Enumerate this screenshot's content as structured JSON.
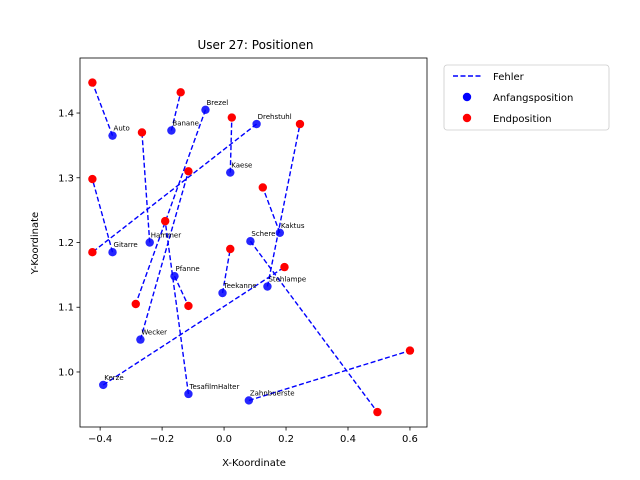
{
  "chart_data": {
    "type": "scatter",
    "title": "User 27: Positionen",
    "xlabel": "X-Koordinate",
    "ylabel": "Y-Koordinate",
    "xlim": [
      -0.465,
      0.655
    ],
    "ylim": [
      0.915,
      1.485
    ],
    "xticks": [
      -0.4,
      -0.2,
      0.0,
      0.2,
      0.4,
      0.6
    ],
    "xtick_labels": [
      "−0.4",
      "−0.2",
      "0.0",
      "0.2",
      "0.4",
      "0.6"
    ],
    "yticks": [
      1.0,
      1.1,
      1.2,
      1.3,
      1.4
    ],
    "ytick_labels": [
      "1.0",
      "1.1",
      "1.2",
      "1.3",
      "1.4"
    ],
    "legend": {
      "placement": "outside-top-right",
      "entries": [
        "Fehler",
        "Anfangsposition",
        "Endposition"
      ]
    },
    "colors": {
      "error_line": "#0000ff",
      "start": "#0000ff",
      "end": "#ff0000"
    },
    "items": [
      {
        "name": "Auto",
        "start": [
          -0.36,
          1.365
        ],
        "end": [
          -0.425,
          1.447
        ]
      },
      {
        "name": "Banane",
        "start": [
          -0.17,
          1.373
        ],
        "end": [
          -0.14,
          1.432
        ]
      },
      {
        "name": "Brezel",
        "start": [
          -0.06,
          1.405
        ],
        "end": [
          -0.285,
          1.105
        ]
      },
      {
        "name": "Drehstuhl",
        "start": [
          0.105,
          1.383
        ],
        "end": [
          -0.425,
          1.185
        ]
      },
      {
        "name": "Kaese",
        "start": [
          0.02,
          1.308
        ],
        "end": [
          0.025,
          1.393
        ]
      },
      {
        "name": "Kaktus",
        "start": [
          0.18,
          1.215
        ],
        "end": [
          0.125,
          1.285
        ]
      },
      {
        "name": "Gitarre",
        "start": [
          -0.36,
          1.185
        ],
        "end": [
          -0.425,
          1.298
        ]
      },
      {
        "name": "Hammer",
        "start": [
          -0.24,
          1.2
        ],
        "end": [
          -0.265,
          1.37
        ]
      },
      {
        "name": "Schere",
        "start": [
          0.085,
          1.202
        ],
        "end": [
          0.495,
          0.938
        ]
      },
      {
        "name": "Pfanne",
        "start": [
          -0.16,
          1.148
        ],
        "end": [
          -0.115,
          1.102
        ]
      },
      {
        "name": "Stehlampe",
        "start": [
          0.14,
          1.132
        ],
        "end": [
          0.245,
          1.383
        ]
      },
      {
        "name": "Teekanne",
        "start": [
          -0.005,
          1.122
        ],
        "end": [
          0.02,
          1.19
        ]
      },
      {
        "name": "Wecker",
        "start": [
          -0.27,
          1.05
        ],
        "end": [
          -0.115,
          1.31
        ]
      },
      {
        "name": "Kerze",
        "start": [
          -0.39,
          0.98
        ],
        "end": [
          0.195,
          1.162
        ]
      },
      {
        "name": "TesafilmHalter",
        "start": [
          -0.115,
          0.966
        ],
        "end": [
          -0.19,
          1.233
        ]
      },
      {
        "name": "Zahnbuerste",
        "start": [
          0.08,
          0.956
        ],
        "end": [
          0.6,
          1.033
        ]
      }
    ]
  }
}
